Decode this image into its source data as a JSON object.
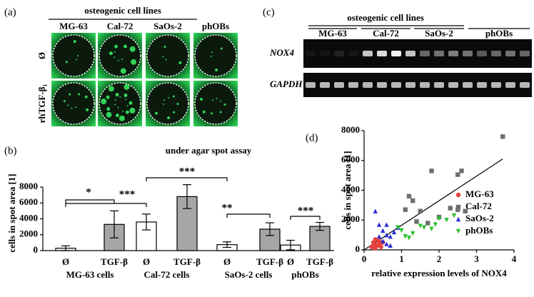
{
  "panel_a": {
    "label": "(a)",
    "title": "osteogenic cell lines",
    "columns": [
      "MG-63",
      "Cal-72",
      "SaOs-2",
      "phOBs"
    ],
    "rows": [
      "Ø",
      "rhTGF-β₁"
    ]
  },
  "panel_b_label": "(b)",
  "panel_c": {
    "label": "(c)",
    "title": "osteogenic cell lines",
    "groups": [
      "MG-63",
      "Cal-72",
      "SaOs-2",
      "phOBs"
    ],
    "rows": [
      "NOX4",
      "GAPDH"
    ]
  },
  "panel_d_label": "(d)",
  "chart_data": [
    {
      "type": "bar",
      "title": "under agar spot assay",
      "y_label": "cells in spot area [1]",
      "groups": [
        "MG-63 cells",
        "Cal-72 cells",
        "SaOs-2 cells",
        "phOBs"
      ],
      "series": [
        {
          "name": "Ø",
          "color": "#ffffff",
          "values": [
            300,
            3600,
            750,
            700
          ],
          "errors": [
            300,
            1000,
            350,
            600
          ]
        },
        {
          "name": "TGF-β",
          "color": "#a6a6a6",
          "values": [
            3300,
            6800,
            2700,
            3050
          ],
          "errors": [
            1700,
            1500,
            800,
            500
          ]
        }
      ],
      "significance": [
        "*",
        "***",
        "***",
        "**",
        "***"
      ],
      "ylim": [
        0,
        8000
      ],
      "yticks": [
        0,
        2000,
        4000,
        6000,
        8000
      ]
    },
    {
      "type": "scatter",
      "x_label": "relative expression levels of NOX4",
      "y_label": "cells in spot area [1]",
      "legend": "center right",
      "series": [
        {
          "name": "MG-63",
          "color": "#e8413c",
          "marker": "circle",
          "x": [
            0.2,
            0.25,
            0.3,
            0.3,
            0.35,
            0.4,
            0.4,
            0.45,
            0.5,
            0.3
          ],
          "y": [
            200,
            500,
            100,
            700,
            300,
            400,
            600,
            200,
            500,
            350
          ]
        },
        {
          "name": "Cal-72",
          "color": "#6e6e6e",
          "marker": "square",
          "x": [
            3.7,
            2.6,
            2.5,
            1.8,
            1.2,
            1.3,
            1.1,
            1.5,
            2.0,
            2.3,
            2.5,
            2.7,
            1.4,
            1.7
          ],
          "y": [
            7600,
            5300,
            5050,
            5300,
            3600,
            3300,
            2700,
            2600,
            2200,
            2800,
            2700,
            2600,
            1900,
            1800
          ]
        },
        {
          "name": "SaOs-2",
          "color": "#2b2bd6",
          "marker": "triangle",
          "x": [
            0.3,
            0.4,
            0.5,
            0.6,
            0.7,
            0.8,
            0.5,
            0.6,
            0.7,
            0.4,
            0.9,
            0.6
          ],
          "y": [
            2600,
            1700,
            1300,
            1000,
            900,
            1200,
            600,
            400,
            300,
            900,
            1500,
            1700
          ]
        },
        {
          "name": "phOBs",
          "color": "#2fc02f",
          "marker": "triangle-down",
          "x": [
            1.1,
            1.2,
            1.3,
            1.5,
            1.6,
            1.9,
            2.0,
            2.2,
            2.4,
            0.9,
            1.0,
            1.8
          ],
          "y": [
            900,
            800,
            1100,
            1600,
            1500,
            1700,
            2100,
            2000,
            2300,
            1500,
            1300,
            1400
          ]
        }
      ],
      "trendline": {
        "x": [
          0,
          3.7
        ],
        "y": [
          0,
          6100
        ]
      },
      "xlim": [
        0,
        4
      ],
      "xticks": [
        0,
        1,
        2,
        3,
        4
      ],
      "ylim": [
        0,
        8000
      ],
      "yticks": [
        0,
        2000,
        4000,
        6000,
        8000
      ]
    }
  ]
}
